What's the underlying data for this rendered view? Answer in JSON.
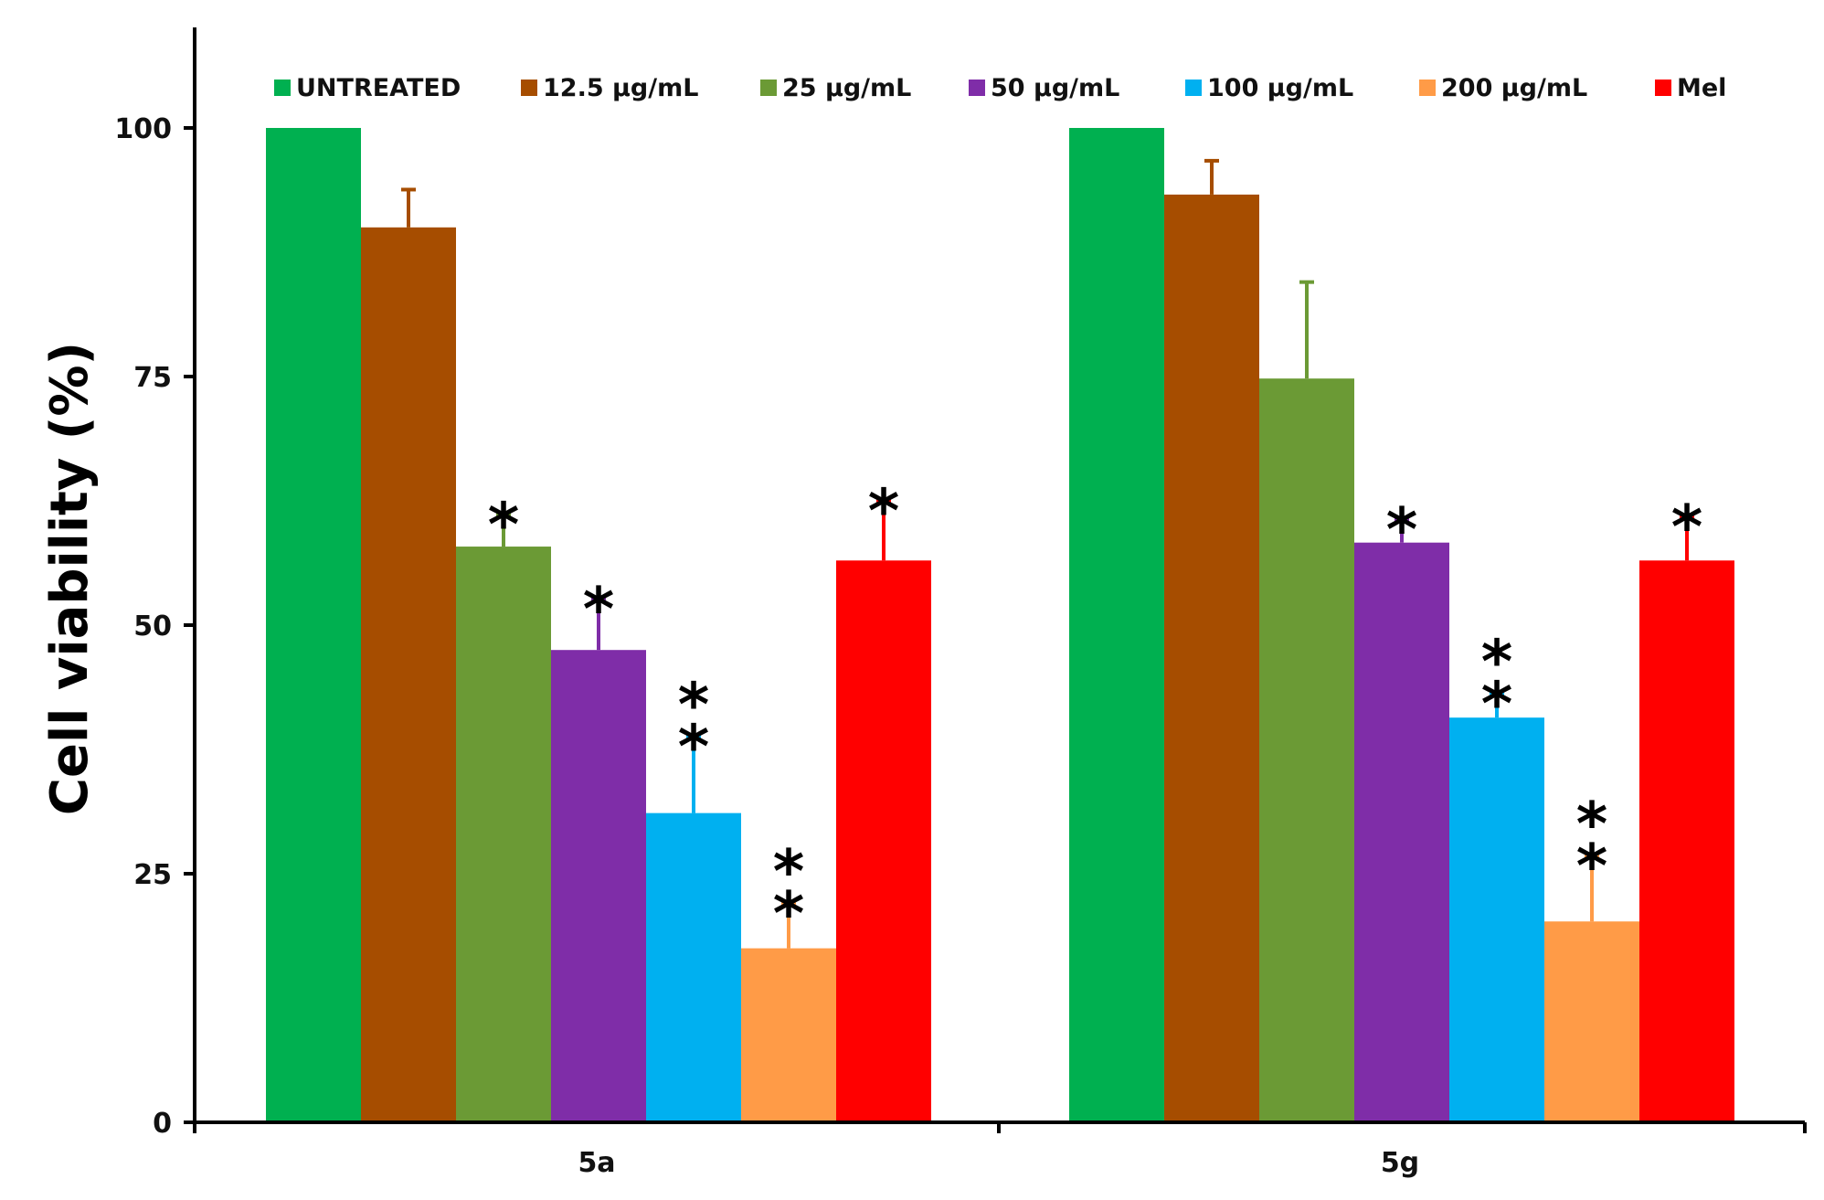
{
  "chart_data": {
    "type": "bar",
    "title": "",
    "xlabel": "",
    "ylabel": "Cell viability (%)",
    "ylim": [
      0,
      110
    ],
    "yticks": [
      0,
      25,
      50,
      75,
      100
    ],
    "grid": false,
    "legend_position": "top",
    "categories": [
      "5a",
      "5g"
    ],
    "series": [
      {
        "name": "UNTREATED",
        "color": "#00B050",
        "values": [
          100,
          100
        ],
        "errors": [
          0,
          0
        ],
        "significance": [
          "",
          ""
        ]
      },
      {
        "name": "12.5 μg/mL",
        "color": "#A64D00",
        "values": [
          90,
          93.3
        ],
        "errors": [
          3.8,
          3.4
        ],
        "significance": [
          "",
          ""
        ]
      },
      {
        "name": "25 μg/mL",
        "color": "#6B9A35",
        "values": [
          57.9,
          74.8
        ],
        "errors": [
          3.2,
          9.7
        ],
        "significance": [
          "*",
          ""
        ]
      },
      {
        "name": "50 μg/mL",
        "color": "#7F2DA8",
        "values": [
          47.5,
          58.3
        ],
        "errors": [
          5.1,
          2.3
        ],
        "significance": [
          "*",
          "*"
        ]
      },
      {
        "name": "100 μg/mL",
        "color": "#00B0F0",
        "values": [
          31.1,
          40.7
        ],
        "errors": [
          7.7,
          2.4
        ],
        "significance": [
          "**",
          "**"
        ]
      },
      {
        "name": "200 μg/mL",
        "color": "#FF9B47",
        "values": [
          17.5,
          20.2
        ],
        "errors": [
          4.5,
          6.6
        ],
        "significance": [
          "**",
          "**"
        ]
      },
      {
        "name": "Mel",
        "color": "#FF0000",
        "values": [
          56.5,
          56.5
        ],
        "errors": [
          6,
          4.4
        ],
        "significance": [
          "*",
          "*"
        ]
      }
    ]
  }
}
